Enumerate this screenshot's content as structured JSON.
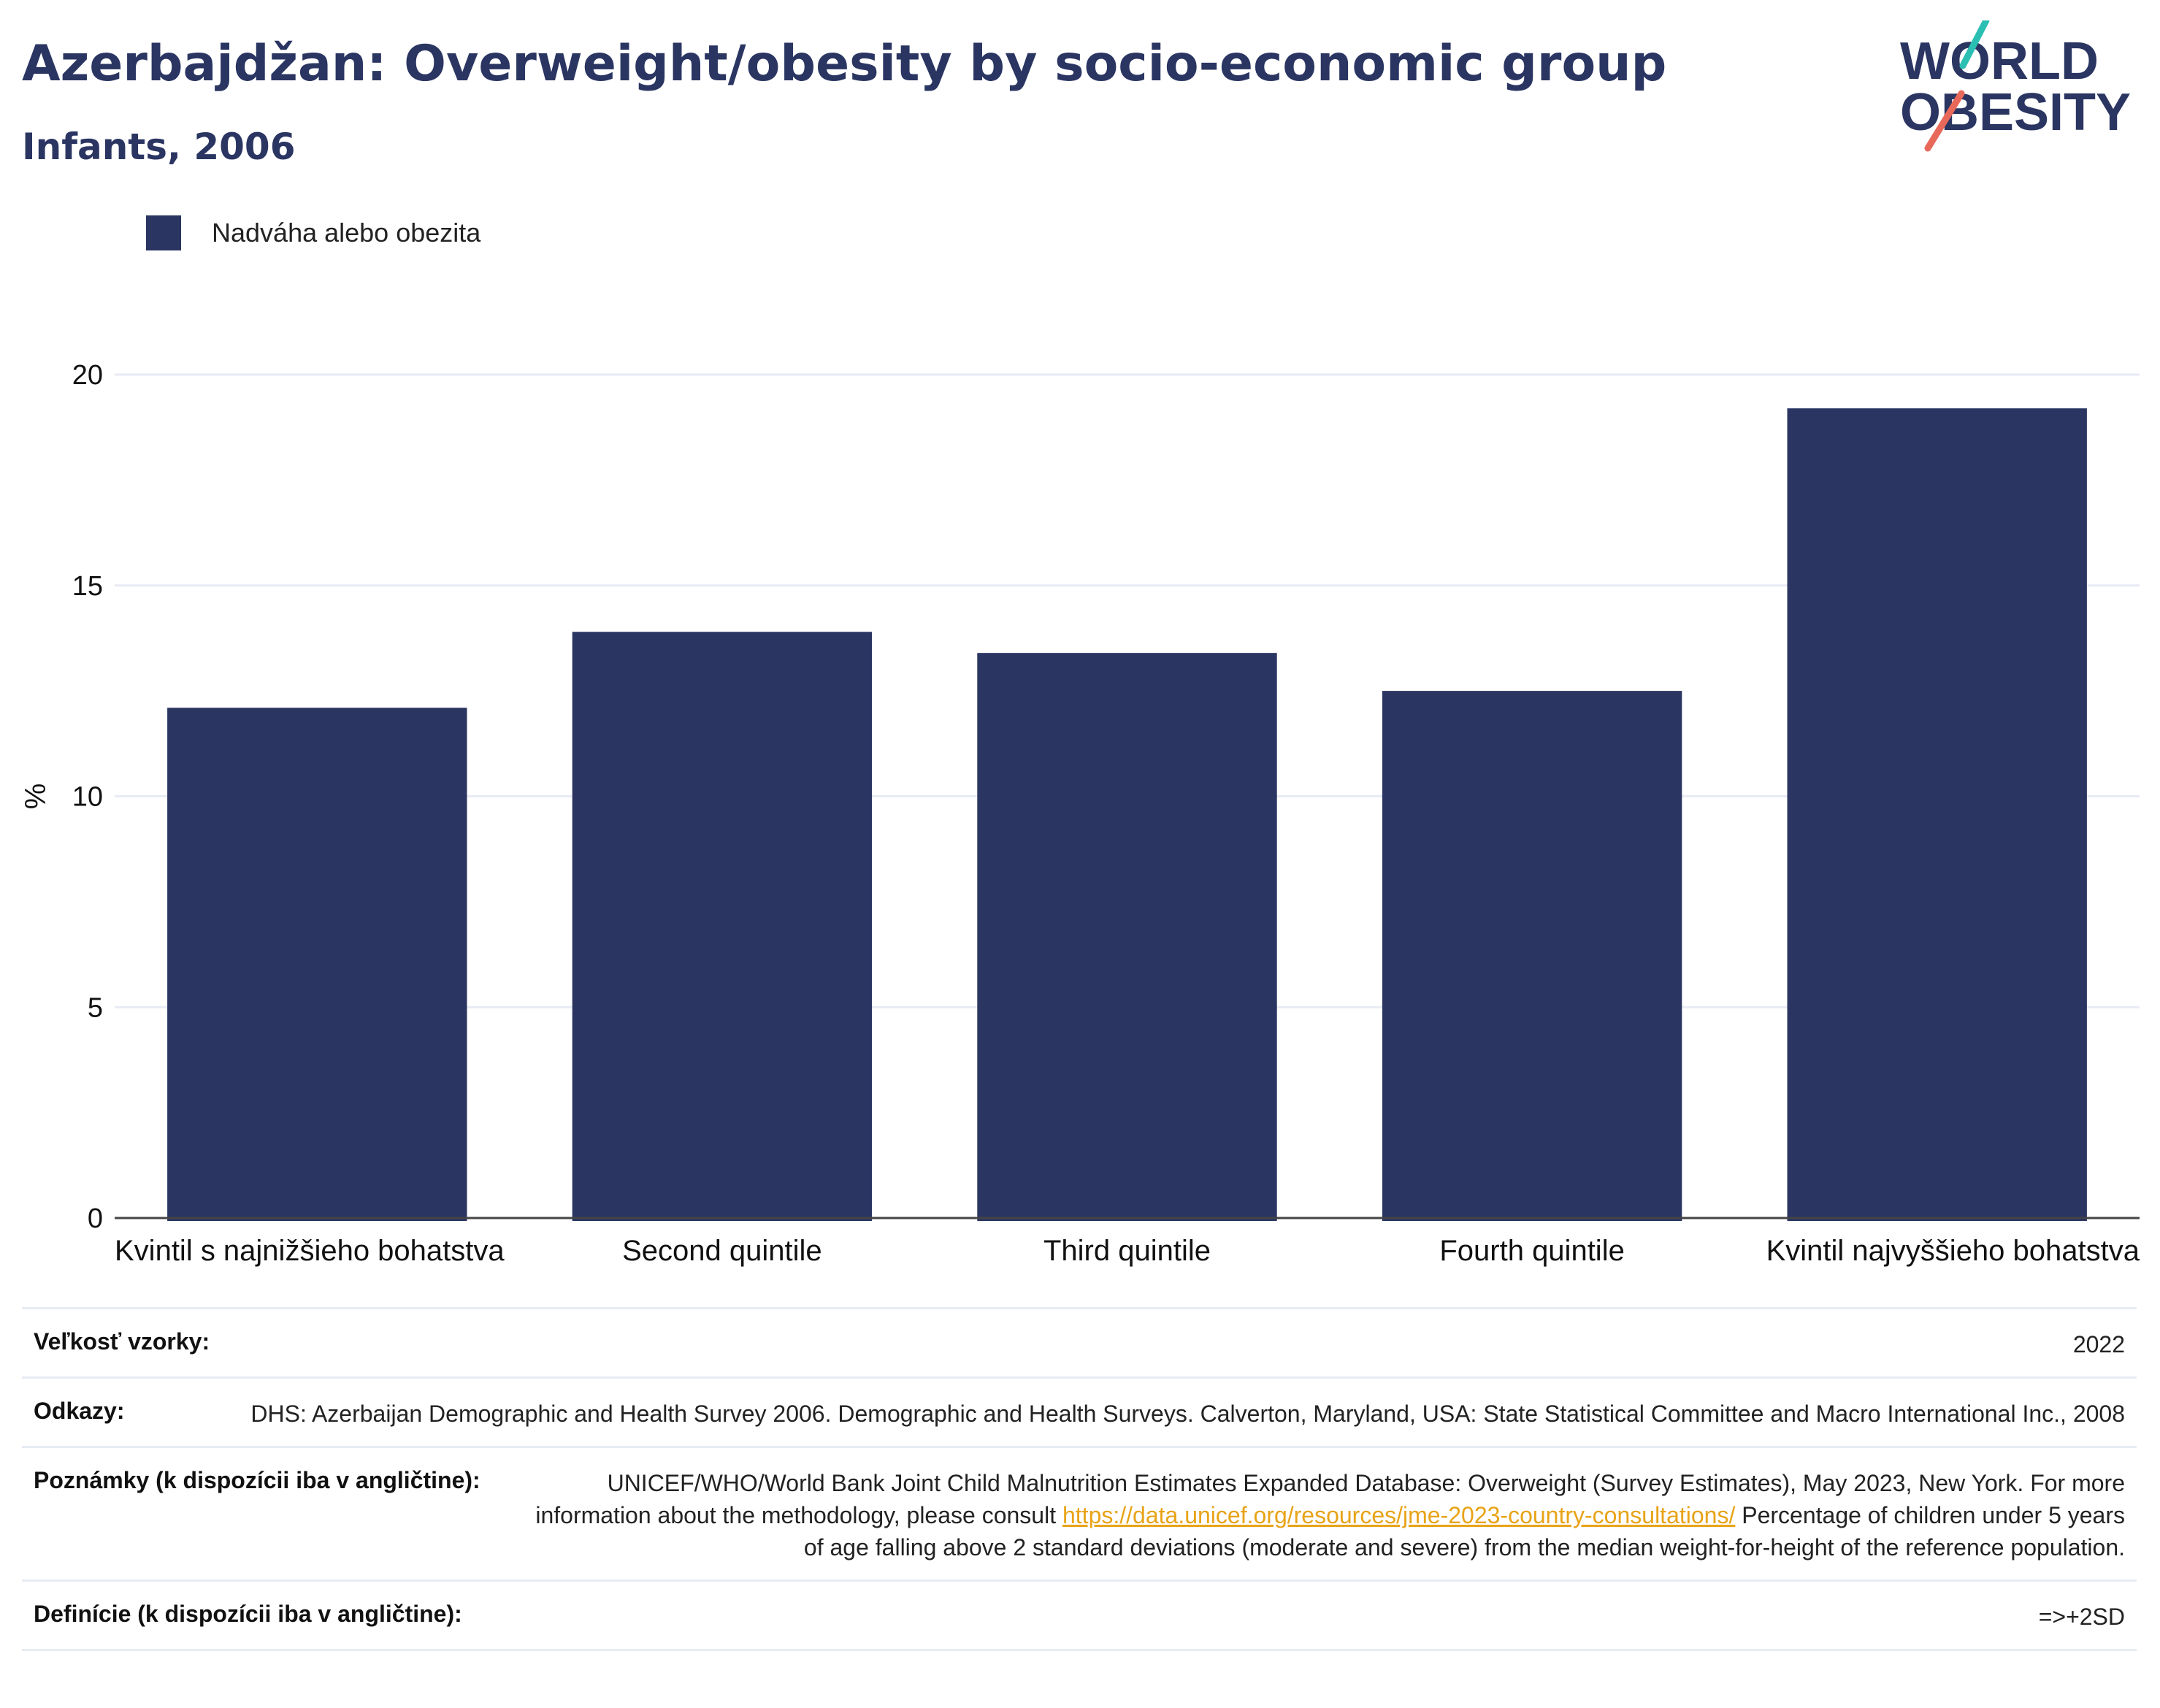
{
  "header": {
    "title": "Azerbajdžan: Overweight/obesity by socio-economic group",
    "subtitle": "Infants, 2006"
  },
  "logo": {
    "line1": "WORLD",
    "line2": "OBESITY",
    "colors": {
      "text": "#2a3562",
      "slash_top": "#2bbfb3",
      "slash_bottom": "#e8685a"
    }
  },
  "legend": {
    "label": "Nadváha alebo obezita",
    "color": "#2a3562"
  },
  "chart_data": {
    "type": "bar",
    "categories": [
      "Kvintil s najnižšieho bohatstva",
      "Second quintile",
      "Third quintile",
      "Fourth quintile",
      "Kvintil najvyššieho bohatstva"
    ],
    "series": [
      {
        "name": "Nadváha alebo obezita",
        "values": [
          12.1,
          13.9,
          13.4,
          12.5,
          19.2
        ],
        "color": "#2a3562"
      }
    ],
    "ylabel": "%",
    "xlabel": "",
    "ylim": [
      0,
      20
    ],
    "yticks": [
      0,
      5,
      10,
      15,
      20
    ],
    "grid": true,
    "legend_position": "top-left"
  },
  "meta": {
    "sample_size": {
      "label": "Veľkosť vzorky:",
      "value": "2022"
    },
    "references": {
      "label": "Odkazy:",
      "value": "DHS: Azerbaijan Demographic and Health Survey 2006. Demographic and Health Surveys. Calverton, Maryland, USA: State Statistical Committee and Macro International Inc., 2008"
    },
    "notes": {
      "label": "Poznámky (k dispozícii iba v angličtine):",
      "text_before": "UNICEF/WHO/World Bank Joint Child Malnutrition Estimates Expanded Database: Overweight (Survey Estimates), May 2023, New York. For more information about the methodology, please consult ",
      "link": "https://data.unicef.org/resources/jme-2023-country-consultations/",
      "text_after": " Percentage of children under 5 years of age falling above 2 standard deviations (moderate and severe) from the median weight-for-height of the reference population."
    },
    "definitions": {
      "label": "Definície (k dispozícii iba v angličtine):",
      "value": "=>+2SD"
    }
  }
}
